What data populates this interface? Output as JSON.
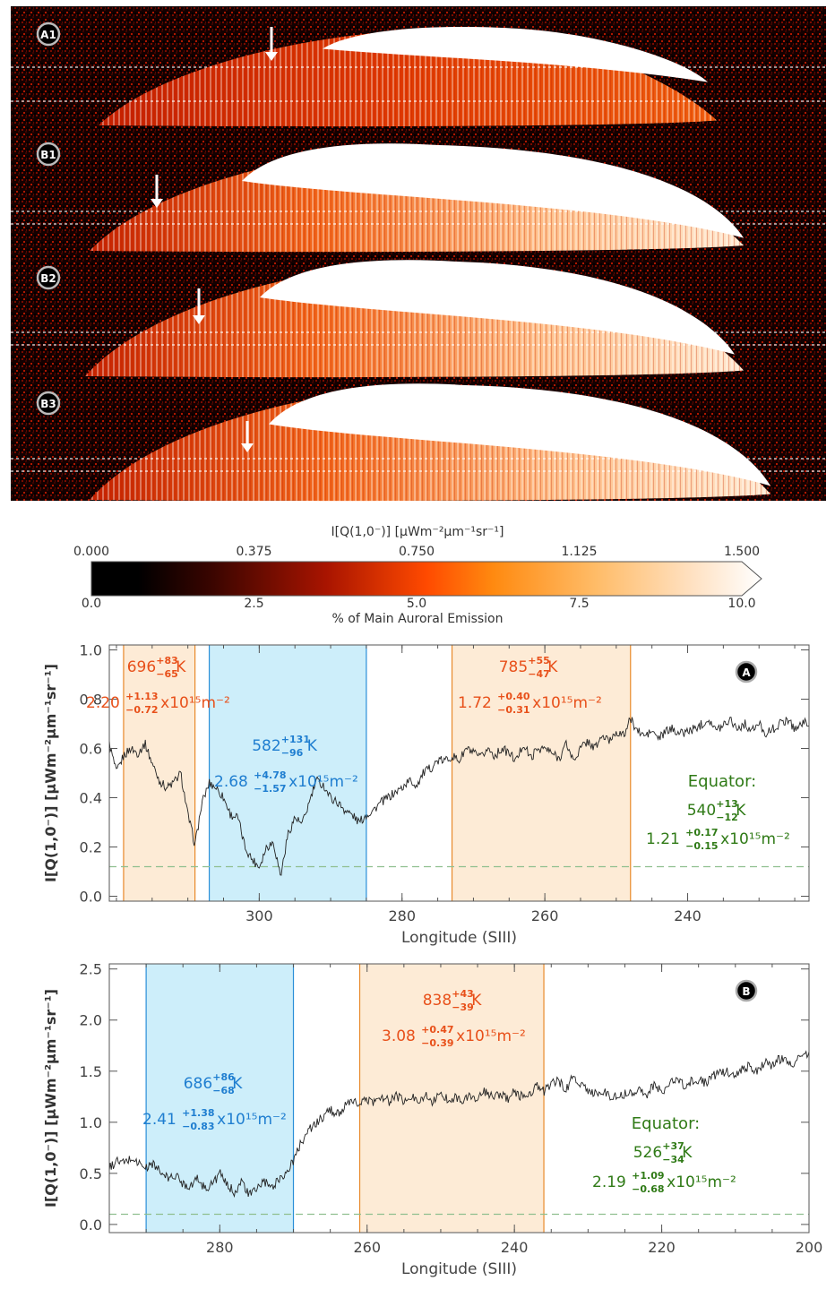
{
  "image_panel": {
    "panel_labels": [
      "A1",
      "B1",
      "B2",
      "B3"
    ]
  },
  "colorbar": {
    "title": "I[Q(1,0⁻)] [μWm⁻²μm⁻¹sr⁻¹]",
    "top_ticks": [
      "0.000",
      "0.375",
      "0.750",
      "1.125",
      "1.500"
    ],
    "bottom_ticks": [
      "0.0",
      "2.5",
      "5.0",
      "7.5",
      "10.0"
    ],
    "bottom_label": "% of Main Auroral Emission",
    "colors": [
      "#000000",
      "#3a0500",
      "#8a1200",
      "#e03a00",
      "#ff7a00",
      "#ffa040",
      "#ffd7a8",
      "#ffffff"
    ]
  },
  "chart_data": [
    {
      "type": "line",
      "panel_badge": "A",
      "xlabel": "Longitude (SIII)",
      "ylabel": "I[Q(1,0⁻)] [μWm⁻²μm⁻¹sr⁻¹]",
      "xlim": [
        321,
        223
      ],
      "ylim": [
        -0.02,
        1.02
      ],
      "x_ticks": [
        300,
        280,
        260,
        240
      ],
      "y_ticks": [
        0.0,
        0.2,
        0.4,
        0.6,
        0.8,
        1.0
      ],
      "x_tick_labels": [
        "300",
        "280",
        "260",
        "240"
      ],
      "y_tick_labels": [
        "0.0",
        "0.2",
        "0.4",
        "0.6",
        "0.8",
        "1.0"
      ],
      "baseline": 0.12,
      "profile_anchors": [
        [
          321,
          0.62
        ],
        [
          320,
          0.5
        ],
        [
          319,
          0.57
        ],
        [
          318,
          0.6
        ],
        [
          317,
          0.58
        ],
        [
          316,
          0.62
        ],
        [
          315,
          0.54
        ],
        [
          314,
          0.47
        ],
        [
          313,
          0.44
        ],
        [
          312,
          0.46
        ],
        [
          311,
          0.5
        ],
        [
          310,
          0.33
        ],
        [
          309,
          0.21
        ],
        [
          308,
          0.38
        ],
        [
          307,
          0.46
        ],
        [
          306,
          0.44
        ],
        [
          305,
          0.4
        ],
        [
          304,
          0.33
        ],
        [
          303,
          0.32
        ],
        [
          302,
          0.2
        ],
        [
          301,
          0.15
        ],
        [
          300,
          0.12
        ],
        [
          299,
          0.2
        ],
        [
          298,
          0.22
        ],
        [
          297,
          0.08
        ],
        [
          296,
          0.25
        ],
        [
          295,
          0.32
        ],
        [
          294,
          0.29
        ],
        [
          293,
          0.38
        ],
        [
          292,
          0.47
        ],
        [
          291,
          0.45
        ],
        [
          290,
          0.4
        ],
        [
          289,
          0.38
        ],
        [
          288,
          0.35
        ],
        [
          287,
          0.33
        ],
        [
          286,
          0.3
        ],
        [
          285,
          0.33
        ],
        [
          284,
          0.35
        ],
        [
          283,
          0.38
        ],
        [
          282,
          0.4
        ],
        [
          281,
          0.42
        ],
        [
          280,
          0.44
        ],
        [
          279,
          0.47
        ],
        [
          278,
          0.45
        ],
        [
          277,
          0.5
        ],
        [
          276,
          0.52
        ],
        [
          275,
          0.55
        ],
        [
          274,
          0.55
        ],
        [
          273,
          0.57
        ],
        [
          272,
          0.55
        ],
        [
          271,
          0.6
        ],
        [
          270,
          0.58
        ],
        [
          269,
          0.56
        ],
        [
          268,
          0.6
        ],
        [
          267,
          0.57
        ],
        [
          266,
          0.6
        ],
        [
          265,
          0.58
        ],
        [
          264,
          0.55
        ],
        [
          263,
          0.62
        ],
        [
          262,
          0.56
        ],
        [
          261,
          0.6
        ],
        [
          260,
          0.6
        ],
        [
          259,
          0.58
        ],
        [
          258,
          0.56
        ],
        [
          257,
          0.62
        ],
        [
          256,
          0.55
        ],
        [
          255,
          0.6
        ],
        [
          254,
          0.63
        ],
        [
          253,
          0.6
        ],
        [
          252,
          0.65
        ],
        [
          251,
          0.63
        ],
        [
          250,
          0.67
        ],
        [
          249,
          0.65
        ],
        [
          248,
          0.72
        ],
        [
          247,
          0.67
        ],
        [
          246,
          0.65
        ],
        [
          245,
          0.67
        ],
        [
          244,
          0.64
        ],
        [
          243,
          0.67
        ],
        [
          242,
          0.68
        ],
        [
          241,
          0.66
        ],
        [
          240,
          0.67
        ],
        [
          239,
          0.68
        ],
        [
          238,
          0.7
        ],
        [
          237,
          0.72
        ],
        [
          236,
          0.67
        ],
        [
          235,
          0.7
        ],
        [
          234,
          0.72
        ],
        [
          233,
          0.68
        ],
        [
          232,
          0.7
        ],
        [
          231,
          0.67
        ],
        [
          230,
          0.7
        ],
        [
          229,
          0.66
        ],
        [
          228,
          0.68
        ],
        [
          227,
          0.7
        ],
        [
          226,
          0.72
        ],
        [
          225,
          0.68
        ],
        [
          224,
          0.7
        ],
        [
          223,
          0.71
        ]
      ],
      "regions": [
        {
          "kind": "warm",
          "x0": 319,
          "x1": 309,
          "temperature": "696",
          "t_plus": "+83",
          "t_minus": "−65",
          "temp_unit": "K",
          "density": "2.20",
          "d_plus": "+1.13",
          "d_minus": "−0.72",
          "density_unit": "x10¹⁵m⁻²"
        },
        {
          "kind": "cool",
          "x0": 307,
          "x1": 285,
          "temperature": "582",
          "t_plus": "+131",
          "t_minus": "−96",
          "temp_unit": "K",
          "density": "2.68",
          "d_plus": "+4.78",
          "d_minus": "−1.57",
          "density_unit": "x10¹⁵m⁻²"
        },
        {
          "kind": "warm",
          "x0": 273,
          "x1": 248,
          "temperature": "785",
          "t_plus": "+55",
          "t_minus": "−47",
          "temp_unit": "K",
          "density": "1.72",
          "d_plus": "+0.40",
          "d_minus": "−0.31",
          "density_unit": "x10¹⁵m⁻²"
        }
      ],
      "equator": {
        "label": "Equator:",
        "temperature": "540",
        "t_plus": "+13",
        "t_minus": "−12",
        "temp_unit": "K",
        "density": "1.21",
        "d_plus": "+0.17",
        "d_minus": "−0.15",
        "density_unit": "x10¹⁵m⁻²"
      }
    },
    {
      "type": "line",
      "panel_badge": "B",
      "xlabel": "Longitude (SIII)",
      "ylabel": "I[Q(1,0⁻)] [μWm⁻²μm⁻¹sr⁻¹]",
      "xlim": [
        295,
        200
      ],
      "ylim": [
        -0.08,
        2.55
      ],
      "x_ticks": [
        280,
        260,
        240,
        220,
        200
      ],
      "y_ticks": [
        0.0,
        0.5,
        1.0,
        1.5,
        2.0,
        2.5
      ],
      "x_tick_labels": [
        "280",
        "260",
        "240",
        "220",
        "200"
      ],
      "y_tick_labels": [
        "0.0",
        "0.5",
        "1.0",
        "1.5",
        "2.0",
        "2.5"
      ],
      "baseline": 0.1,
      "profile_anchors": [
        [
          295,
          0.55
        ],
        [
          294,
          0.62
        ],
        [
          293,
          0.6
        ],
        [
          292,
          0.65
        ],
        [
          291,
          0.6
        ],
        [
          290,
          0.55
        ],
        [
          289,
          0.6
        ],
        [
          288,
          0.5
        ],
        [
          287,
          0.45
        ],
        [
          286,
          0.48
        ],
        [
          285,
          0.4
        ],
        [
          284,
          0.38
        ],
        [
          283,
          0.45
        ],
        [
          282,
          0.35
        ],
        [
          281,
          0.4
        ],
        [
          280,
          0.5
        ],
        [
          279,
          0.38
        ],
        [
          278,
          0.32
        ],
        [
          277,
          0.42
        ],
        [
          276,
          0.28
        ],
        [
          275,
          0.35
        ],
        [
          274,
          0.42
        ],
        [
          273,
          0.35
        ],
        [
          272,
          0.45
        ],
        [
          271,
          0.5
        ],
        [
          270,
          0.62
        ],
        [
          269,
          0.8
        ],
        [
          268,
          0.92
        ],
        [
          267,
          0.98
        ],
        [
          266,
          1.05
        ],
        [
          265,
          1.12
        ],
        [
          264,
          1.08
        ],
        [
          263,
          1.15
        ],
        [
          262,
          1.2
        ],
        [
          261,
          1.18
        ],
        [
          260,
          1.22
        ],
        [
          259,
          1.2
        ],
        [
          258,
          1.25
        ],
        [
          257,
          1.2
        ],
        [
          256,
          1.26
        ],
        [
          255,
          1.2
        ],
        [
          254,
          1.24
        ],
        [
          253,
          1.22
        ],
        [
          252,
          1.26
        ],
        [
          251,
          1.2
        ],
        [
          250,
          1.28
        ],
        [
          249,
          1.22
        ],
        [
          248,
          1.25
        ],
        [
          247,
          1.2
        ],
        [
          246,
          1.26
        ],
        [
          245,
          1.22
        ],
        [
          244,
          1.3
        ],
        [
          243,
          1.24
        ],
        [
          242,
          1.28
        ],
        [
          241,
          1.22
        ],
        [
          240,
          1.3
        ],
        [
          239,
          1.25
        ],
        [
          238,
          1.28
        ],
        [
          237,
          1.35
        ],
        [
          236,
          1.3
        ],
        [
          235,
          1.38
        ],
        [
          234,
          1.4
        ],
        [
          233,
          1.32
        ],
        [
          232,
          1.45
        ],
        [
          231,
          1.35
        ],
        [
          230,
          1.32
        ],
        [
          229,
          1.28
        ],
        [
          228,
          1.3
        ],
        [
          227,
          1.26
        ],
        [
          226,
          1.25
        ],
        [
          225,
          1.28
        ],
        [
          224,
          1.3
        ],
        [
          223,
          1.32
        ],
        [
          222,
          1.28
        ],
        [
          221,
          1.36
        ],
        [
          220,
          1.3
        ],
        [
          219,
          1.35
        ],
        [
          218,
          1.45
        ],
        [
          217,
          1.35
        ],
        [
          216,
          1.4
        ],
        [
          215,
          1.42
        ],
        [
          214,
          1.38
        ],
        [
          213,
          1.45
        ],
        [
          212,
          1.48
        ],
        [
          211,
          1.5
        ],
        [
          210,
          1.45
        ],
        [
          209,
          1.52
        ],
        [
          208,
          1.55
        ],
        [
          207,
          1.5
        ],
        [
          206,
          1.6
        ],
        [
          205,
          1.56
        ],
        [
          204,
          1.62
        ],
        [
          203,
          1.6
        ],
        [
          202,
          1.58
        ],
        [
          201,
          1.65
        ],
        [
          200,
          1.67
        ]
      ],
      "regions": [
        {
          "kind": "cool",
          "x0": 290,
          "x1": 270,
          "temperature": "686",
          "t_plus": "+86",
          "t_minus": "−68",
          "temp_unit": "K",
          "density": "2.41",
          "d_plus": "+1.38",
          "d_minus": "−0.83",
          "density_unit": "x10¹⁵m⁻²"
        },
        {
          "kind": "warm",
          "x0": 261,
          "x1": 236,
          "temperature": "838",
          "t_plus": "+43",
          "t_minus": "−39",
          "temp_unit": "K",
          "density": "3.08",
          "d_plus": "+0.47",
          "d_minus": "−0.39",
          "density_unit": "x10¹⁵m⁻²"
        }
      ],
      "equator": {
        "label": "Equator:",
        "temperature": "526",
        "t_plus": "+37",
        "t_minus": "−34",
        "temp_unit": "K",
        "density": "2.19",
        "d_plus": "+1.09",
        "d_minus": "−0.68",
        "density_unit": "x10¹⁵m⁻²"
      }
    }
  ],
  "style": {
    "warm_fill": "#fdebd6",
    "warm_edge": "#e8892a",
    "warm_text": "#e8501a",
    "cool_fill": "#cdeefa",
    "cool_edge": "#2a8fd8",
    "cool_text": "#1f7ed0",
    "equator_text": "#2f7a16",
    "line": "#222222",
    "baseline": "#8fbf8f"
  }
}
